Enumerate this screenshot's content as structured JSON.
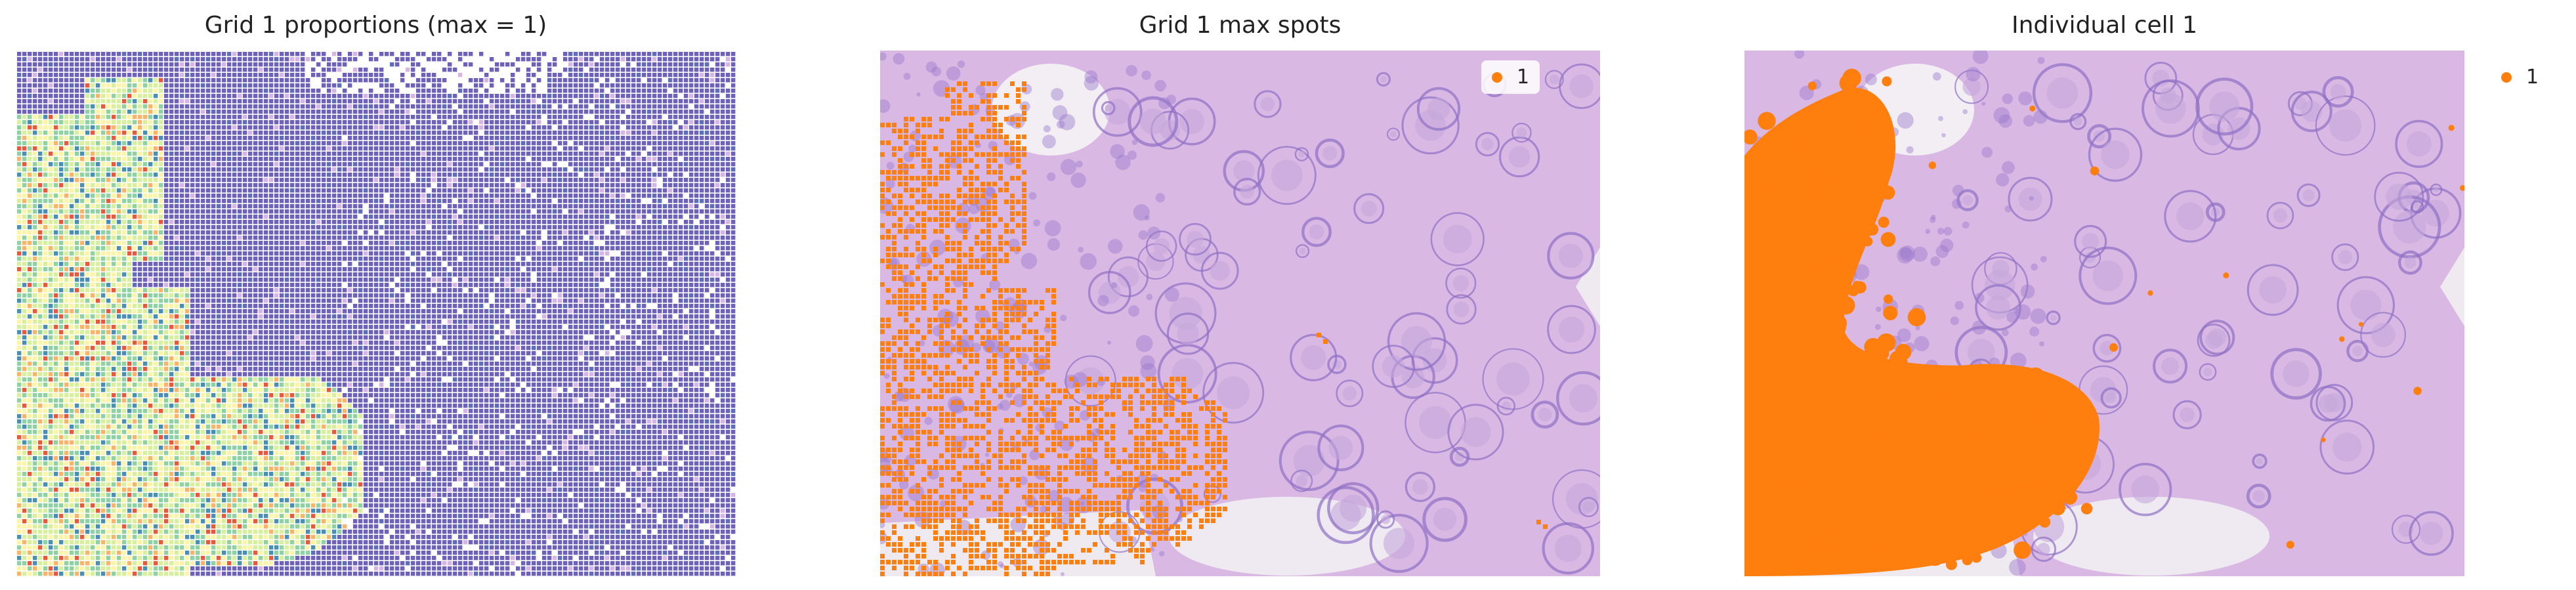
{
  "chart_data": [
    {
      "type": "scatter",
      "title": "Grid 1 proportions (max = 1)",
      "colormap": "Spectral_r",
      "grid": false,
      "color_scale_max": 1,
      "colors": {
        "low": "#6a5fb4",
        "mid": "#c8e6a0",
        "high": "#d73027"
      }
    },
    {
      "type": "scatter",
      "title": "Grid 1 max spots",
      "grid": false,
      "legend": {
        "placement": "top-right-inside",
        "entries": [
          {
            "label": "1",
            "color": "#ff7f0e"
          }
        ]
      }
    },
    {
      "type": "scatter",
      "title": "Individual cell 1",
      "grid": false,
      "legend": {
        "placement": "outside-right",
        "entries": [
          {
            "label": "1",
            "color": "#ff7f0e"
          }
        ]
      }
    }
  ],
  "colors": {
    "tissue_bg": "#d9b8e3",
    "tissue_dark": "#8b6cc3",
    "highlight": "#ff7f0e"
  }
}
